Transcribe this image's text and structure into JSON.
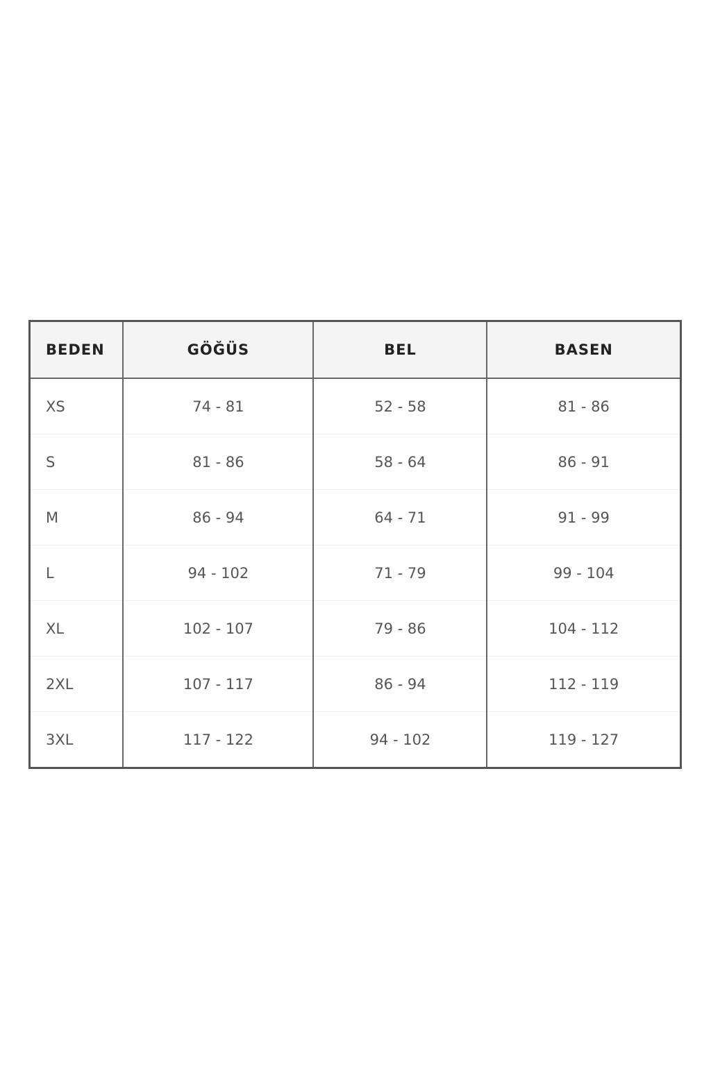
{
  "size_table": {
    "headers": [
      "BEDEN",
      "GÖĞÜS",
      "BEL",
      "BASEN"
    ],
    "rows": [
      [
        "XS",
        "74 - 81",
        "52 - 58",
        "81 - 86"
      ],
      [
        "S",
        "81 - 86",
        "58 - 64",
        "86 - 91"
      ],
      [
        "M",
        "86 - 94",
        "64 - 71",
        "91 - 99"
      ],
      [
        "L",
        "94 - 102",
        "71 - 79",
        "99 - 104"
      ],
      [
        "XL",
        "102 - 107",
        "79 - 86",
        "104 - 112"
      ],
      [
        "2XL",
        "107 - 117",
        "86 - 94",
        "112 - 119"
      ],
      [
        "3XL",
        "117 - 122",
        "94 - 102",
        "119 - 127"
      ]
    ]
  }
}
